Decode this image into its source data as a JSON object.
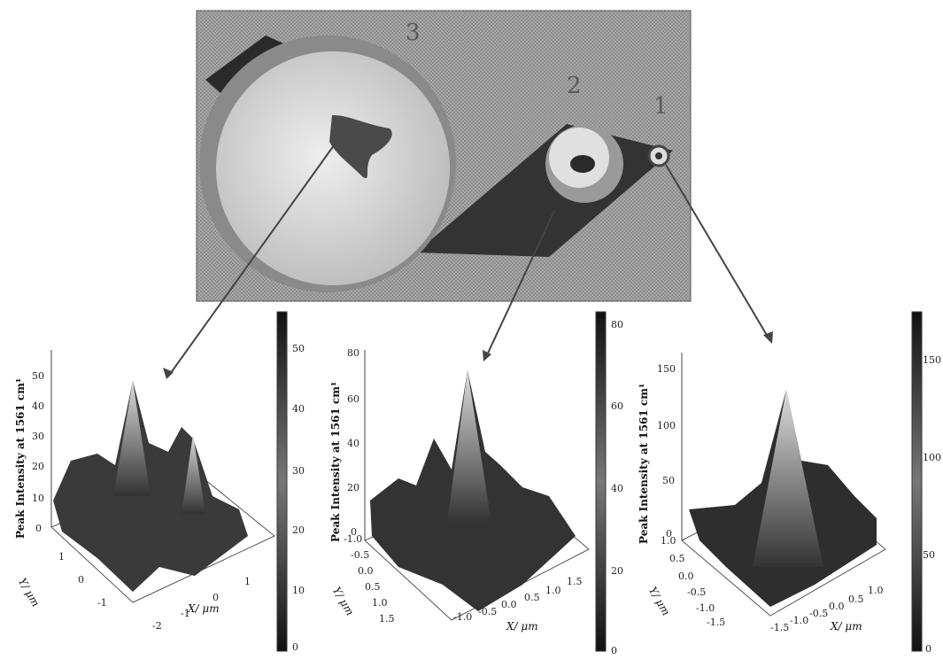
{
  "photo": {
    "labels": [
      "3",
      "2",
      "1"
    ]
  },
  "plots": [
    {
      "z_label": "Peak Intensity at 1561 cm¹",
      "y_label": "Y/ μm",
      "x_label": "X/ μm",
      "z_ticks": [
        "50",
        "40",
        "30",
        "20",
        "10",
        "0"
      ],
      "y_ticks": [
        "1",
        "0",
        "-1"
      ],
      "x_ticks": [
        "-2",
        "-1",
        "0",
        "1"
      ],
      "colorbar_ticks": [
        "50",
        "40",
        "30",
        "20",
        "10",
        "0"
      ]
    },
    {
      "z_label": "Peak Intensity at 1561 cm¹",
      "y_label": "Y/ μm",
      "x_label": "X/ μm",
      "z_ticks": [
        "80",
        "60",
        "40",
        "20",
        "0"
      ],
      "y_ticks": [
        "-1.0",
        "-0.5",
        "0.0",
        "0.5",
        "1.0",
        "1.5"
      ],
      "x_ticks": [
        "-1.0",
        "-0.5",
        "0.0",
        "0.5",
        "1.0",
        "1.5"
      ],
      "colorbar_ticks": [
        "80",
        "60",
        "40",
        "20",
        "0"
      ]
    },
    {
      "z_label": "Peak Intensity at 1561 cm¹",
      "y_label": "Y/ μm",
      "x_label": "X/ μm",
      "z_ticks": [
        "150",
        "100",
        "50",
        "0"
      ],
      "y_ticks": [
        "1.0",
        "0.5",
        "0.0",
        "-0.5",
        "-1.0",
        "-1.5"
      ],
      "x_ticks": [
        "-1.5",
        "-1.0",
        "-0.5",
        "0.0",
        "0.5",
        "1.0"
      ],
      "colorbar_ticks": [
        "150",
        "100",
        "50",
        "0"
      ]
    }
  ]
}
